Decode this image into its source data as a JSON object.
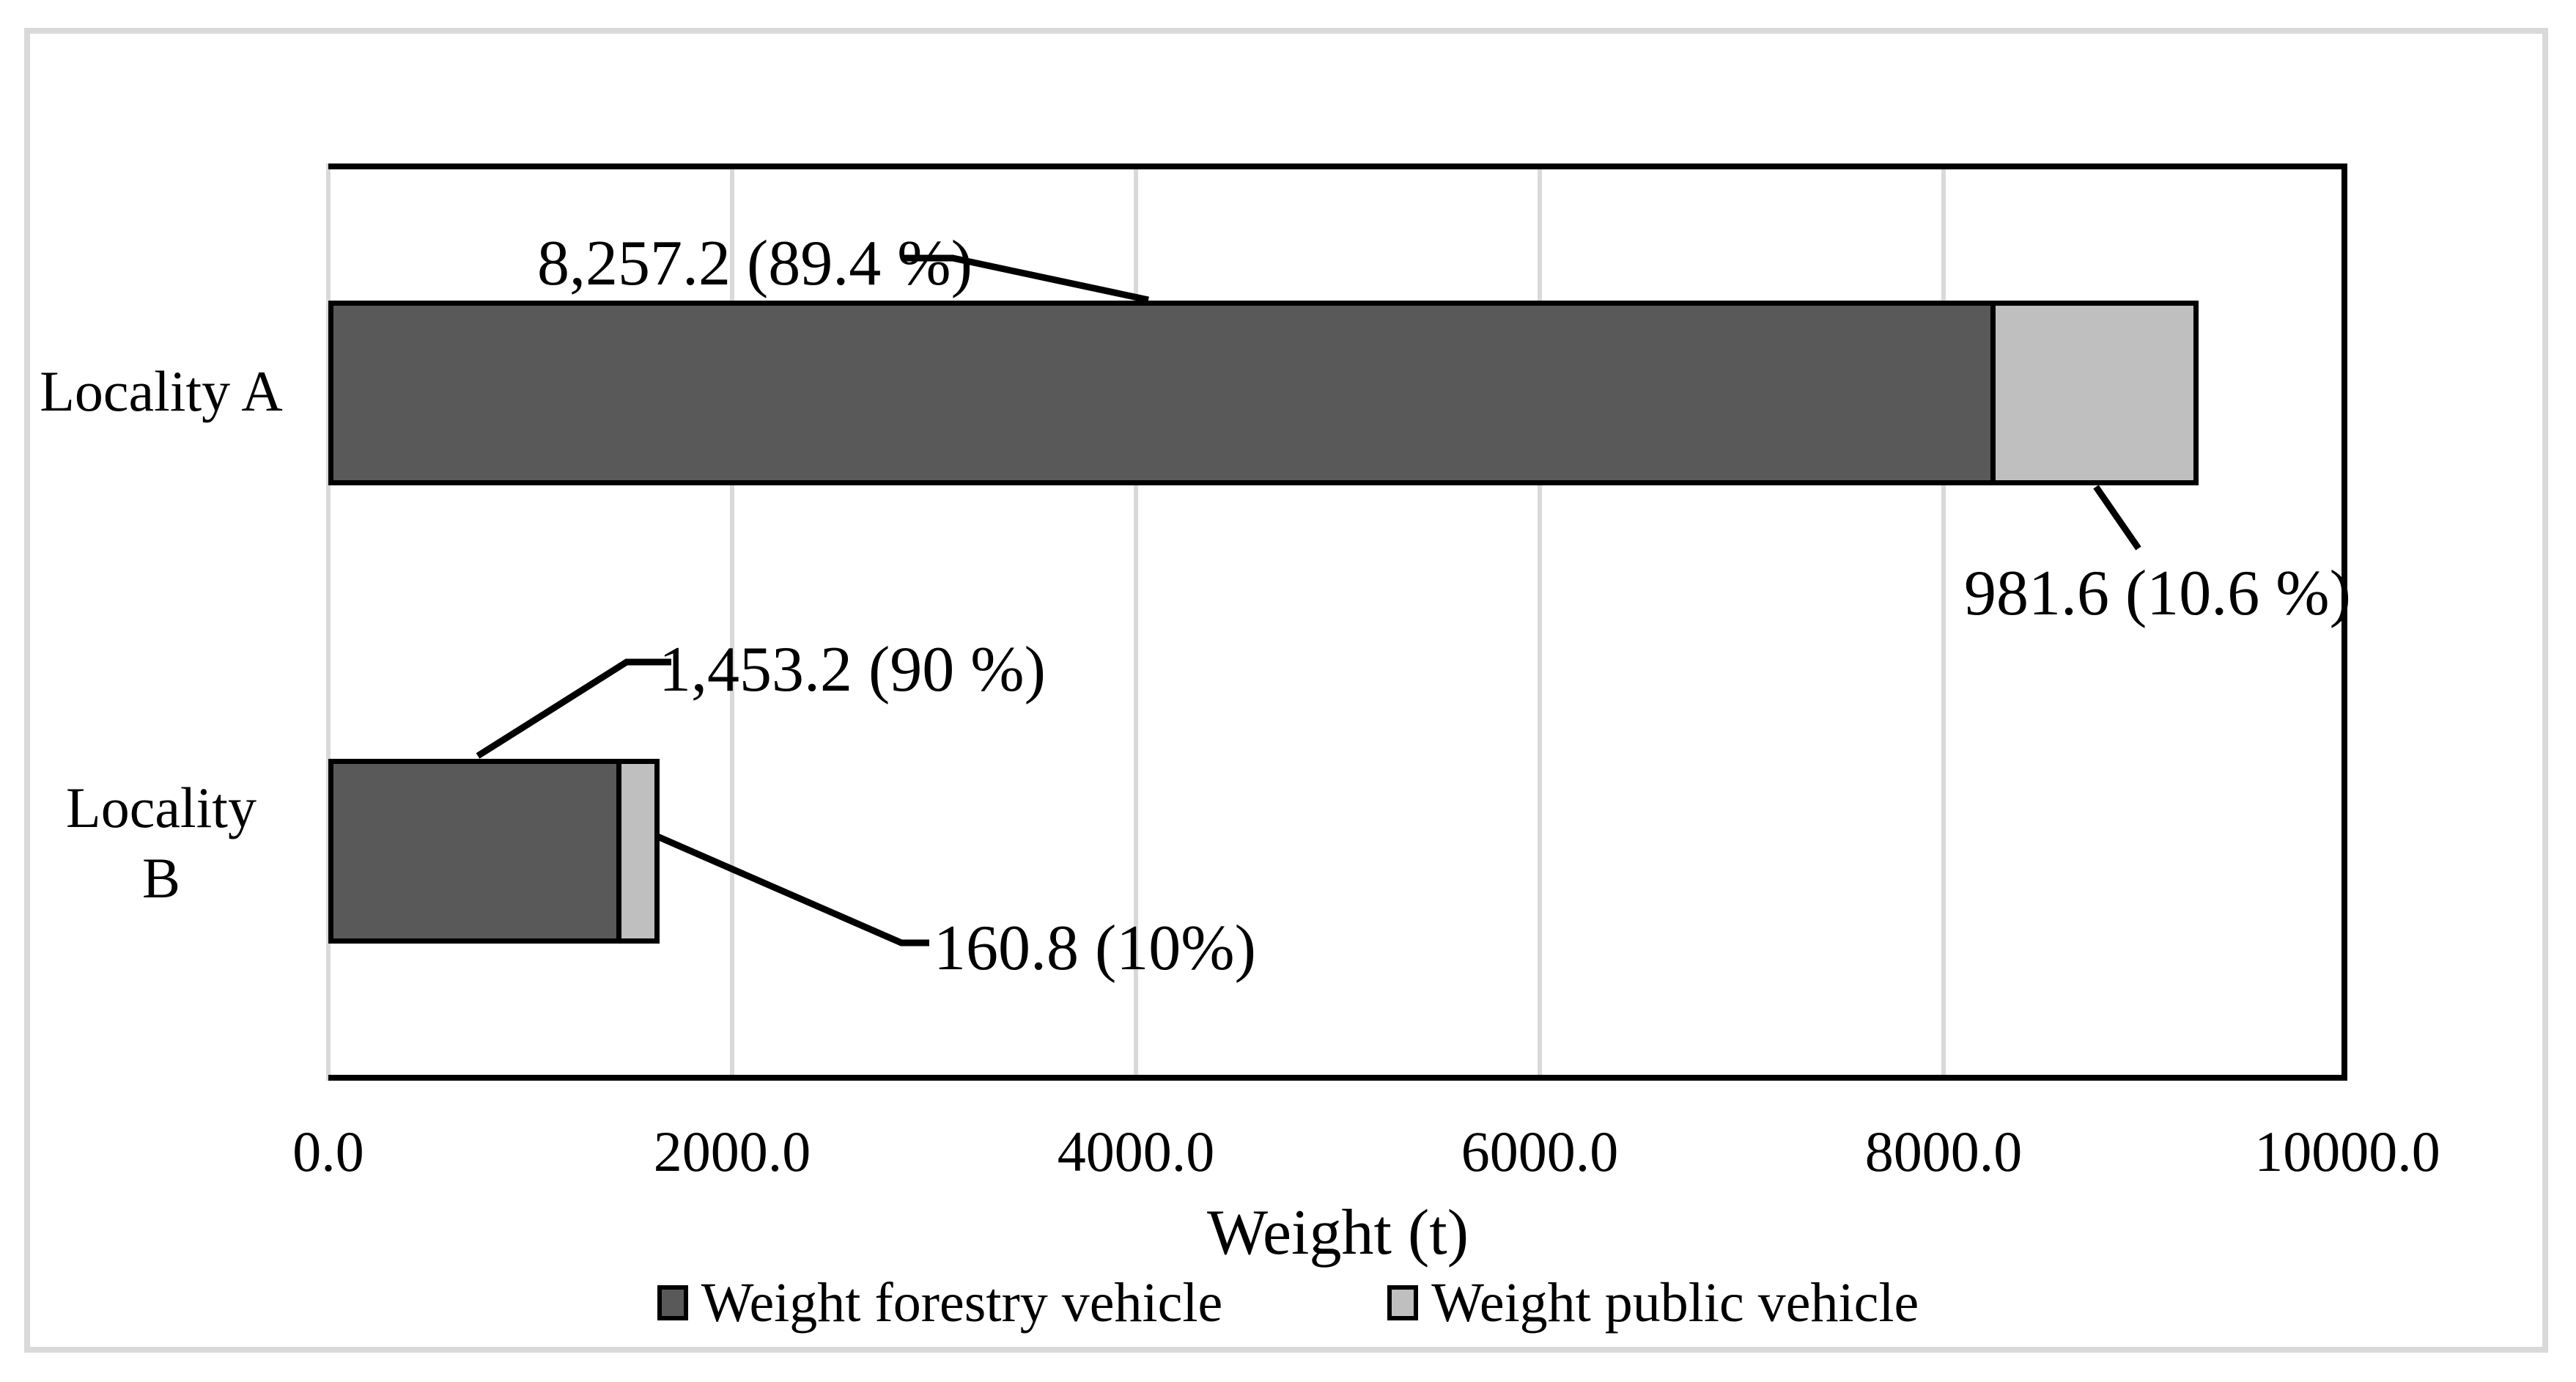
{
  "figure": {
    "frame_color": "#D9D9D9",
    "background": "#FFFFFF"
  },
  "chart_data": {
    "type": "bar",
    "orientation": "horizontal",
    "stacked": true,
    "title": "",
    "xlabel": "Weight (t)",
    "ylabel": "",
    "xlim": [
      0,
      10000
    ],
    "grid": true,
    "gridline_color": "#D9D9D9",
    "axis_color": "#000000",
    "categories": [
      "Locality A",
      "Locality B"
    ],
    "category_label_lines": [
      [
        "Locality A"
      ],
      [
        "Locality",
        "B"
      ]
    ],
    "series": [
      {
        "name": "Weight forestry vehicle",
        "color": "#595959",
        "values": [
          8257.2,
          1453.2
        ]
      },
      {
        "name": "Weight public vehicle",
        "color": "#BFBFBF",
        "values": [
          981.6,
          160.8
        ]
      }
    ],
    "totals": [
      9238.8,
      1614.0
    ],
    "xticks": [
      "0.0",
      "2000.0",
      "4000.0",
      "6000.0",
      "8000.0",
      "10000.0"
    ],
    "xtick_values": [
      0,
      2000,
      4000,
      6000,
      8000,
      10000
    ],
    "data_labels": [
      {
        "text": "8,257.2 (89.4 %)",
        "for": "Locality A / forestry"
      },
      {
        "text": "981.6 (10.6 %)",
        "for": "Locality A / public"
      },
      {
        "text": "1,453.2 (90 %)",
        "for": "Locality B / forestry"
      },
      {
        "text": "160.8 (10%)",
        "for": "Locality B / public"
      }
    ],
    "legend_position": "bottom",
    "legend": [
      "Weight forestry vehicle",
      "Weight public vehicle"
    ]
  }
}
